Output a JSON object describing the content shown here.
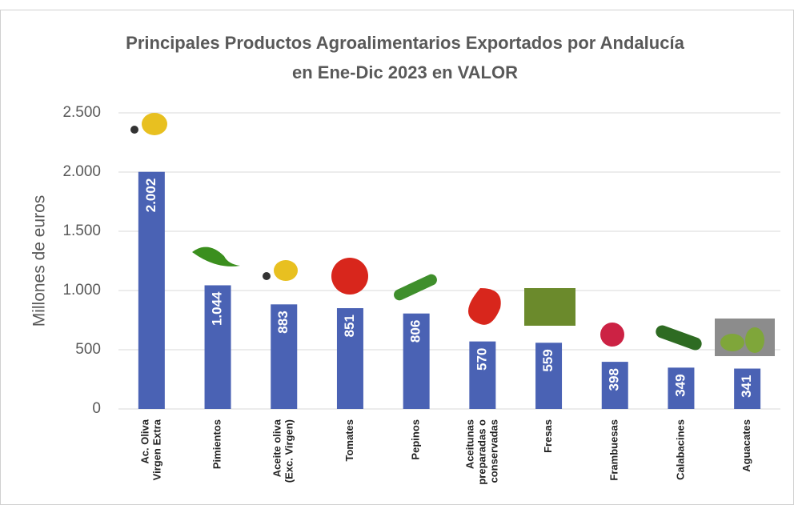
{
  "chart_data": {
    "type": "bar",
    "title": [
      "Principales  Productos Agroalimentarios  Exportados por Andalucía",
      "en Ene-Dic 2023 en VALOR"
    ],
    "y_label": "Millones de euros",
    "categories": [
      [
        "Ac. Oliva",
        "Virgen Extra"
      ],
      [
        "Pimientos"
      ],
      [
        "Aceite oliva",
        "(Exc. Virgen)"
      ],
      [
        "Tomates"
      ],
      [
        "Pepinos"
      ],
      [
        "Aceitunas",
        "preparadas o",
        "conservadas"
      ],
      [
        "Fresas"
      ],
      [
        "Frambuesas"
      ],
      [
        "Calabacines"
      ],
      [
        "Aguacates"
      ]
    ],
    "values": [
      2002,
      1044,
      883,
      851,
      806,
      570,
      559,
      398,
      349,
      341
    ],
    "value_labels": [
      "2.002",
      "1.044",
      "883",
      "851",
      "806",
      "570",
      "559",
      "398",
      "349",
      "341"
    ],
    "color": "#4a62b4",
    "ylim": [
      0,
      2500
    ],
    "yticks": [
      0,
      500,
      {
        "value": 1000,
        "label": "1.000"
      },
      {
        "value": 1500,
        "label": "1.500"
      },
      {
        "value": 2000,
        "label": "2.000"
      },
      {
        "value": 2500,
        "label": "2.500"
      }
    ],
    "grid": true
  }
}
